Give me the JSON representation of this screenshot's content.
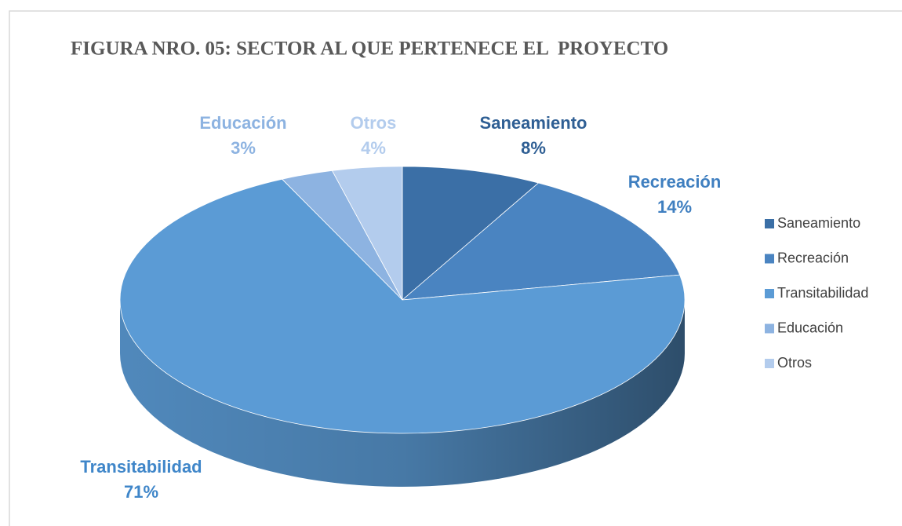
{
  "chart_data": {
    "type": "pie3d",
    "title": "FIGURA NRO. 05: SECTOR AL QUE PERTENECE EL  PROYECTO",
    "categories": [
      "Saneamiento",
      "Recreación",
      "Transitabilidad",
      "Educación",
      "Otros"
    ],
    "values": [
      8,
      14,
      71,
      3,
      4
    ],
    "value_labels": [
      "8%",
      "14%",
      "71%",
      "3%",
      "4%"
    ],
    "colors": [
      "#3b6fa6",
      "#4a84c1",
      "#5b9bd5",
      "#8db3e1",
      "#b3cced"
    ],
    "legend": "right"
  }
}
